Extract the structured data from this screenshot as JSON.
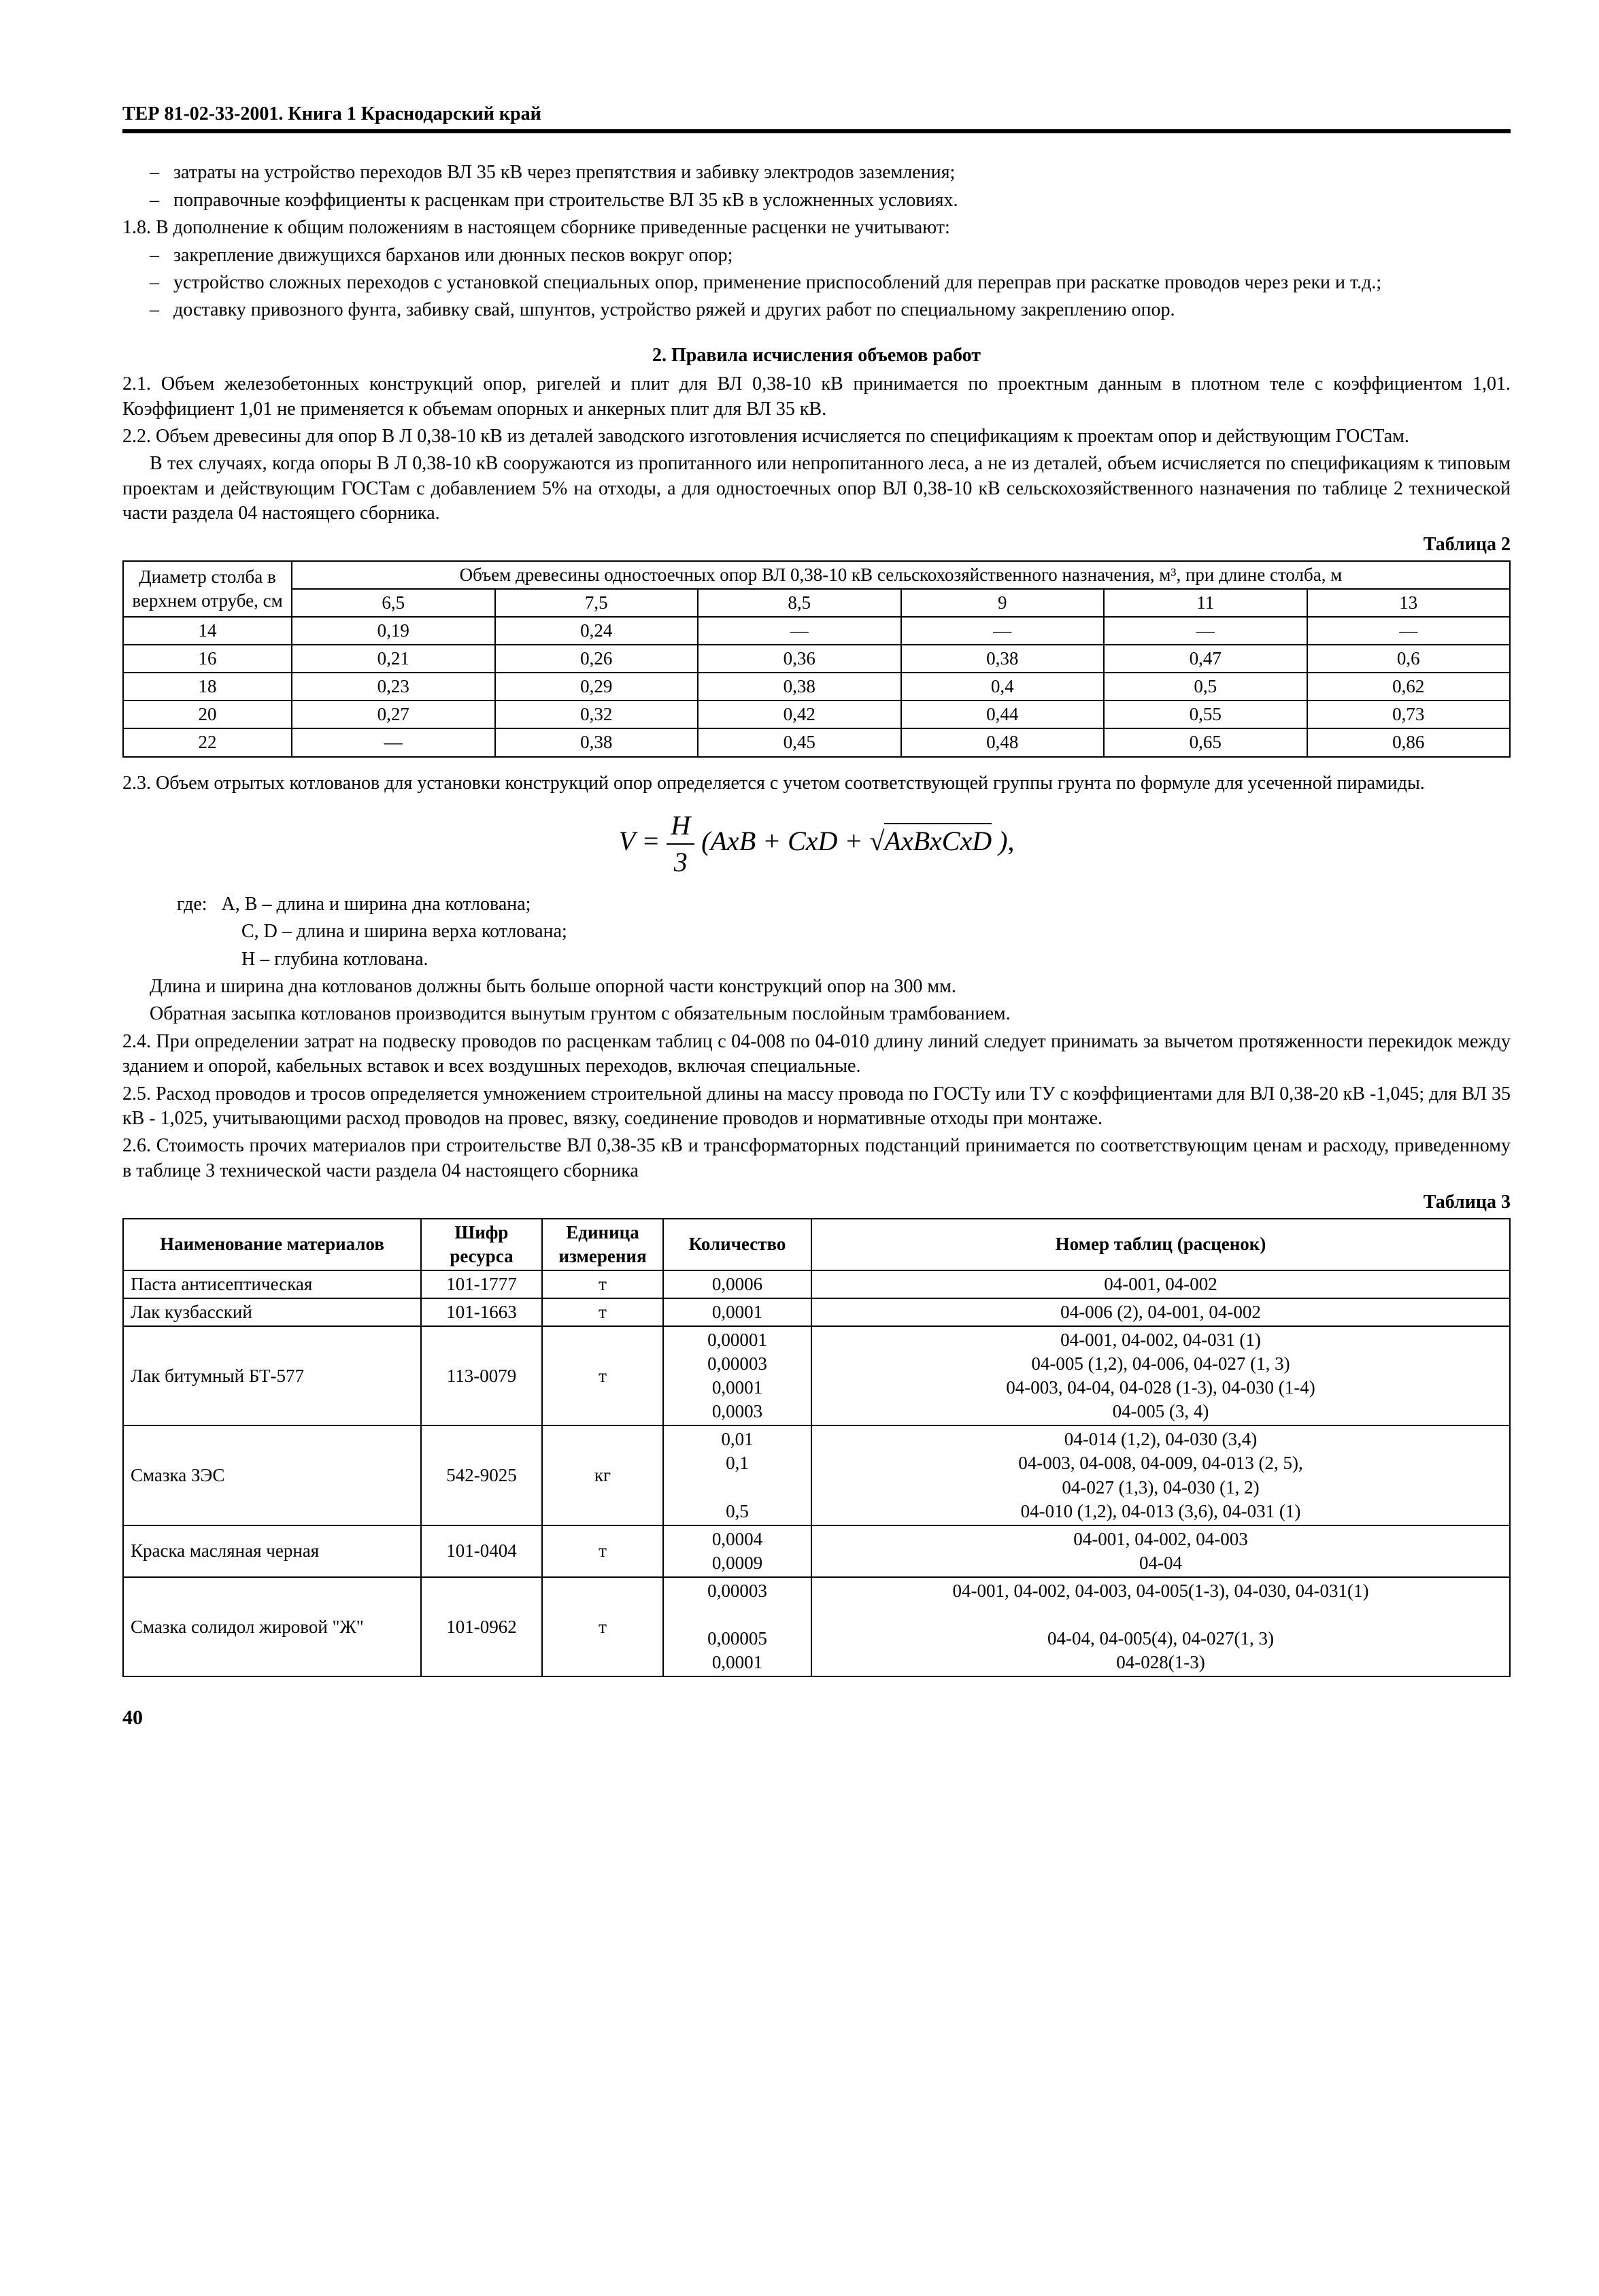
{
  "header": "ТЕР 81-02-33-2001. Книга 1  Краснодарский край",
  "top_dashes": [
    "затраты на устройство переходов ВЛ 35 кВ через препятствия и забивку электродов заземления;",
    "поправочные коэффициенты к расценкам при строительстве ВЛ 35 кВ в усложненных условиях."
  ],
  "p18": "1.8.   В дополнение к общим положениям в настоящем сборнике приведенные расценки не учитывают:",
  "p18_dashes": [
    "закрепление движущихся барханов или дюнных песков вокруг опор;",
    "устройство сложных переходов с установкой специальных опор, применение приспособлений для переправ при раскатке проводов через реки и т.д.;",
    "доставку привозного фунта, забивку свай, шпунтов, устройство ряжей и других работ по специальному закреплению опор."
  ],
  "section2_title": "2.  Правила исчисления объемов работ",
  "p21": "2.1.   Объем железобетонных конструкций опор, ригелей и плит для ВЛ 0,38-10 кВ принимается по проектным данным в плотном теле с коэффициентом 1,01. Коэффициент 1,01 не применяется к объемам опорных и анкерных плит для ВЛ 35 кВ.",
  "p22": "2.2.   Объем древесины для опор В Л 0,38-10 кВ из деталей заводского изготовления исчисляется по спецификациям к проектам опор и действующим ГОСТам.",
  "p22b": "В тех случаях, когда опоры В Л 0,38-10 кВ сооружаются из пропитанного или непропитанного леса, а не из деталей, объем исчисляется по спецификациям к типовым проектам и действующим ГОСТам с добавлением 5% на отходы, а для одностоечных опор ВЛ 0,38-10 кВ сельскохозяйственного назначения по таблице 2 технической части раздела 04 настоящего сборника.",
  "table2_label": "Таблица 2",
  "table2": {
    "col_header_main": "Диаметр столба в верхнем отрубе, см",
    "col_header_span": "Объем древесины одностоечных опор ВЛ 0,38-10 кВ сельскохозяйственного назначения, м³, при длине столба, м",
    "cols": [
      "6,5",
      "7,5",
      "8,5",
      "9",
      "11",
      "13"
    ],
    "rows": [
      {
        "d": "14",
        "v": [
          "0,19",
          "0,24",
          "—",
          "—",
          "—",
          "—"
        ]
      },
      {
        "d": "16",
        "v": [
          "0,21",
          "0,26",
          "0,36",
          "0,38",
          "0,47",
          "0,6"
        ]
      },
      {
        "d": "18",
        "v": [
          "0,23",
          "0,29",
          "0,38",
          "0,4",
          "0,5",
          "0,62"
        ]
      },
      {
        "d": "20",
        "v": [
          "0,27",
          "0,32",
          "0,42",
          "0,44",
          "0,55",
          "0,73"
        ]
      },
      {
        "d": "22",
        "v": [
          "—",
          "0,38",
          "0,45",
          "0,48",
          "0,65",
          "0,86"
        ]
      }
    ]
  },
  "p23": "2.3.  Объем отрытых котлованов для установки конструкций опор определяется с учетом соответствующей группы грунта по формуле для усеченной пирамиды.",
  "formula": {
    "V": "V",
    "H": "H",
    "three": "3",
    "term1": "AxB",
    "plus": " + ",
    "term2": "CxD",
    "term3": "AxBxCxD",
    "close": " ),"
  },
  "where_label": "где:",
  "where": [
    "A, B – длина и ширина дна котлована;",
    "C, D – длина и ширина верха котлована;",
    "H – глубина котлована."
  ],
  "p23b": "Длина и ширина дна котлованов должны быть больше опорной части конструкций опор на 300 мм.",
  "p23c": "Обратная засыпка котлованов производится вынутым грунтом с обязательным послойным трамбованием.",
  "p24": "2.4.   При определении затрат на подвеску проводов по расценкам таблиц с  04-008 по 04-010 длину линий следует принимать за вычетом протяженности перекидок между зданием и опорой, кабельных вставок и всех воздушных переходов, включая специальные.",
  "p25": "2.5.   Расход проводов и тросов определяется умножением строительной длины на массу провода по ГОСТу или ТУ с коэффициентами для ВЛ 0,38-20 кВ -1,045; для ВЛ 35 кВ - 1,025, учитывающими расход проводов на провес, вязку, соединение проводов и нормативные отходы при монтаже.",
  "p26": "2.6.   Стоимость  прочих материалов при строительстве ВЛ 0,38-35 кВ и трансформаторных подстанций   принимается по соответствующим ценам и расходу,   приведенному   в таблице 3 технической части раздела 04 настоящего сборника",
  "table3_label": "Таблица 3",
  "table3": {
    "headers": [
      "Наименование материалов",
      "Шифр ресурса",
      "Единица измерения",
      "Количество",
      "Номер таблиц (расценок)"
    ],
    "rows": [
      {
        "name": "Паста антисептическая",
        "code": "101-1777",
        "unit": "т",
        "qty": [
          "0,0006"
        ],
        "num": [
          "04-001, 04-002"
        ]
      },
      {
        "name": "Лак кузбасский",
        "code": "101-1663",
        "unit": "т",
        "qty": [
          "0,0001"
        ],
        "num": [
          "04-006 (2), 04-001, 04-002"
        ]
      },
      {
        "name": "Лак битумный БТ-577",
        "code": "113-0079",
        "unit": "т",
        "qty": [
          "0,00001",
          "0,00003",
          "0,0001",
          "0,0003"
        ],
        "num": [
          "04-001, 04-002, 04-031 (1)",
          "04-005 (1,2), 04-006, 04-027 (1, 3)",
          "04-003, 04-04, 04-028 (1-3), 04-030 (1-4)",
          "04-005 (3, 4)"
        ]
      },
      {
        "name": "Смазка ЗЭС",
        "code": "542-9025",
        "unit": "кг",
        "qty": [
          "0,01",
          "0,1",
          "",
          "0,5"
        ],
        "num": [
          "04-014 (1,2), 04-030 (3,4)",
          "04-003, 04-008, 04-009, 04-013 (2, 5),",
          "04-027 (1,3), 04-030 (1, 2)",
          "04-010 (1,2), 04-013 (3,6), 04-031 (1)"
        ]
      },
      {
        "name": "Краска масляная черная",
        "code": "101-0404",
        "unit": "т",
        "qty": [
          "0,0004",
          "0,0009"
        ],
        "num": [
          "04-001, 04-002, 04-003",
          "04-04"
        ]
      },
      {
        "name": "Смазка солидол жировой \"Ж\"",
        "code": "101-0962",
        "unit": "т",
        "qty": [
          "0,00003",
          "",
          "0,00005",
          "0,0001"
        ],
        "num": [
          "04-001, 04-002, 04-003, 04-005(1-3), 04-030, 04-031(1)",
          "",
          "04-04, 04-005(4), 04-027(1, 3)",
          "04-028(1-3)"
        ]
      }
    ]
  },
  "page_num": "40"
}
